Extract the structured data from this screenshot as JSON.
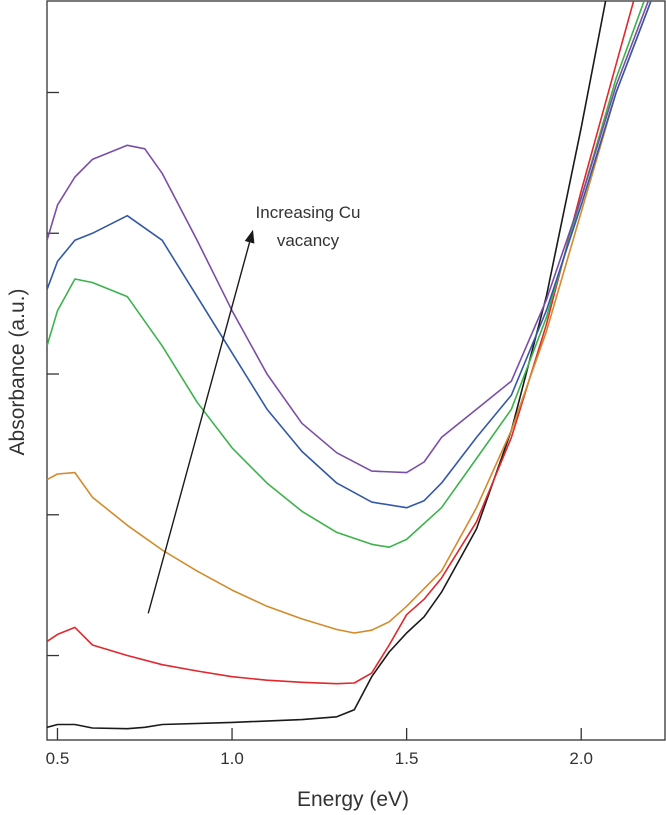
{
  "chart_data": {
    "type": "line",
    "title": "",
    "xlabel": "Energy (eV)",
    "ylabel": "Absorbance (a.u.)",
    "xlim": [
      0.47,
      2.24
    ],
    "ylim": [
      0,
      10.5
    ],
    "xticks": [
      "0.5",
      "1.0",
      "1.5",
      "2.0"
    ],
    "xtick_values": [
      0.5,
      1.0,
      1.5,
      2.0
    ],
    "ytick_values": [
      1.2,
      3.2,
      5.2,
      7.2,
      9.2
    ],
    "yticks_labeled": false,
    "grid": false,
    "legend": null,
    "annotation": {
      "lines": [
        "Increasing Cu",
        "vacancy"
      ],
      "arrow_from": [
        0.76,
        1.8
      ],
      "arrow_to": [
        1.06,
        7.25
      ]
    },
    "series": [
      {
        "name": "black",
        "color": "#1a1a1a",
        "points": [
          [
            0.47,
            0.18
          ],
          [
            0.5,
            0.22
          ],
          [
            0.55,
            0.22
          ],
          [
            0.6,
            0.17
          ],
          [
            0.7,
            0.16
          ],
          [
            0.75,
            0.18
          ],
          [
            0.8,
            0.22
          ],
          [
            1.0,
            0.25
          ],
          [
            1.2,
            0.29
          ],
          [
            1.3,
            0.33
          ],
          [
            1.35,
            0.43
          ],
          [
            1.4,
            0.9
          ],
          [
            1.45,
            1.25
          ],
          [
            1.5,
            1.52
          ],
          [
            1.55,
            1.75
          ],
          [
            1.6,
            2.1
          ],
          [
            1.7,
            3.0
          ],
          [
            1.8,
            4.4
          ],
          [
            1.9,
            6.3
          ],
          [
            2.0,
            8.7
          ],
          [
            2.07,
            10.5
          ]
        ]
      },
      {
        "name": "red",
        "color": "#e0282d",
        "points": [
          [
            0.47,
            1.4
          ],
          [
            0.5,
            1.5
          ],
          [
            0.55,
            1.6
          ],
          [
            0.6,
            1.35
          ],
          [
            0.7,
            1.2
          ],
          [
            0.8,
            1.07
          ],
          [
            0.9,
            0.98
          ],
          [
            1.0,
            0.9
          ],
          [
            1.1,
            0.85
          ],
          [
            1.2,
            0.82
          ],
          [
            1.3,
            0.8
          ],
          [
            1.35,
            0.81
          ],
          [
            1.4,
            0.95
          ],
          [
            1.45,
            1.35
          ],
          [
            1.5,
            1.78
          ],
          [
            1.55,
            2.0
          ],
          [
            1.6,
            2.3
          ],
          [
            1.7,
            3.1
          ],
          [
            1.8,
            4.3
          ],
          [
            1.9,
            5.9
          ],
          [
            2.0,
            7.8
          ],
          [
            2.1,
            9.6
          ],
          [
            2.15,
            10.5
          ]
        ]
      },
      {
        "name": "orange",
        "color": "#d48a2a",
        "points": [
          [
            0.47,
            3.7
          ],
          [
            0.5,
            3.78
          ],
          [
            0.55,
            3.8
          ],
          [
            0.6,
            3.45
          ],
          [
            0.7,
            3.05
          ],
          [
            0.8,
            2.7
          ],
          [
            0.9,
            2.4
          ],
          [
            1.0,
            2.13
          ],
          [
            1.1,
            1.9
          ],
          [
            1.2,
            1.72
          ],
          [
            1.3,
            1.57
          ],
          [
            1.35,
            1.52
          ],
          [
            1.4,
            1.56
          ],
          [
            1.45,
            1.68
          ],
          [
            1.5,
            1.9
          ],
          [
            1.6,
            2.4
          ],
          [
            1.7,
            3.3
          ],
          [
            1.8,
            4.4
          ],
          [
            1.9,
            5.8
          ],
          [
            2.0,
            7.5
          ],
          [
            2.1,
            9.2
          ],
          [
            2.2,
            10.5
          ]
        ]
      },
      {
        "name": "green",
        "color": "#3cb34a",
        "points": [
          [
            0.47,
            5.6
          ],
          [
            0.5,
            6.1
          ],
          [
            0.55,
            6.55
          ],
          [
            0.6,
            6.5
          ],
          [
            0.7,
            6.3
          ],
          [
            0.8,
            5.6
          ],
          [
            0.9,
            4.8
          ],
          [
            1.0,
            4.15
          ],
          [
            1.1,
            3.65
          ],
          [
            1.2,
            3.25
          ],
          [
            1.3,
            2.95
          ],
          [
            1.4,
            2.78
          ],
          [
            1.45,
            2.74
          ],
          [
            1.5,
            2.85
          ],
          [
            1.6,
            3.3
          ],
          [
            1.7,
            4.0
          ],
          [
            1.8,
            4.7
          ],
          [
            1.9,
            6.0
          ],
          [
            2.0,
            7.7
          ],
          [
            2.1,
            9.4
          ],
          [
            2.18,
            10.5
          ]
        ]
      },
      {
        "name": "blue",
        "color": "#3358a8",
        "points": [
          [
            0.47,
            6.4
          ],
          [
            0.5,
            6.8
          ],
          [
            0.55,
            7.1
          ],
          [
            0.6,
            7.2
          ],
          [
            0.7,
            7.45
          ],
          [
            0.8,
            7.1
          ],
          [
            0.9,
            6.3
          ],
          [
            1.0,
            5.5
          ],
          [
            1.1,
            4.7
          ],
          [
            1.2,
            4.1
          ],
          [
            1.3,
            3.65
          ],
          [
            1.4,
            3.38
          ],
          [
            1.5,
            3.3
          ],
          [
            1.55,
            3.4
          ],
          [
            1.6,
            3.65
          ],
          [
            1.7,
            4.3
          ],
          [
            1.8,
            4.9
          ],
          [
            1.9,
            6.1
          ],
          [
            2.0,
            7.6
          ],
          [
            2.1,
            9.2
          ],
          [
            2.2,
            10.5
          ]
        ]
      },
      {
        "name": "purple",
        "color": "#7a4ea8",
        "points": [
          [
            0.47,
            7.1
          ],
          [
            0.5,
            7.6
          ],
          [
            0.55,
            8.0
          ],
          [
            0.6,
            8.25
          ],
          [
            0.7,
            8.45
          ],
          [
            0.75,
            8.4
          ],
          [
            0.8,
            8.05
          ],
          [
            0.9,
            7.1
          ],
          [
            1.0,
            6.1
          ],
          [
            1.1,
            5.2
          ],
          [
            1.2,
            4.5
          ],
          [
            1.3,
            4.08
          ],
          [
            1.4,
            3.82
          ],
          [
            1.5,
            3.8
          ],
          [
            1.55,
            3.95
          ],
          [
            1.6,
            4.3
          ],
          [
            1.7,
            4.7
          ],
          [
            1.8,
            5.1
          ],
          [
            1.9,
            6.25
          ],
          [
            2.0,
            7.7
          ],
          [
            2.1,
            9.3
          ],
          [
            2.2,
            10.6
          ]
        ]
      }
    ]
  }
}
